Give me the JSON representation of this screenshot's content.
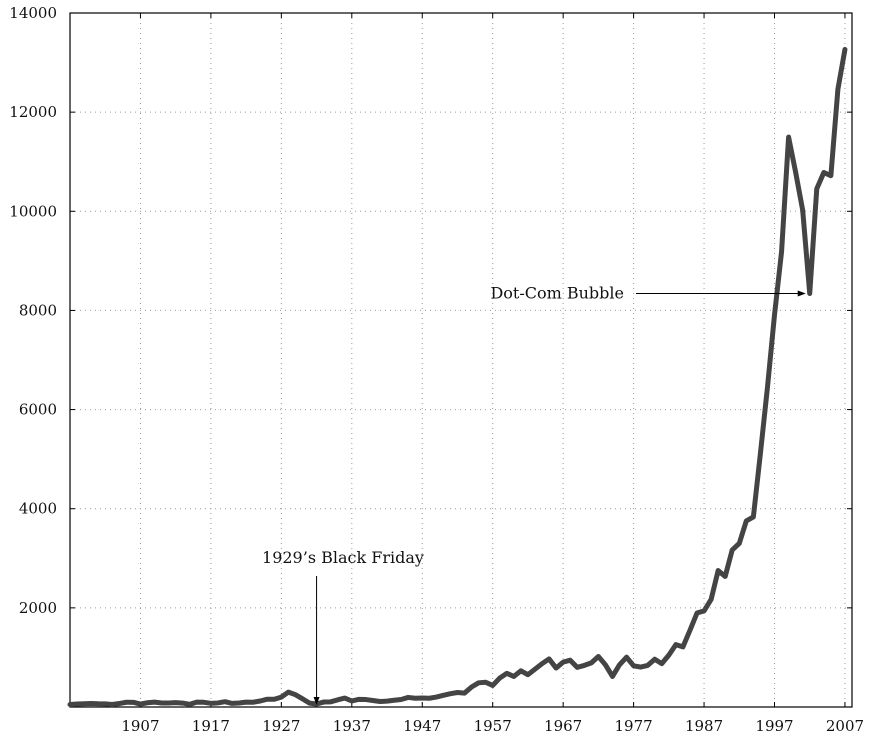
{
  "chart_data": {
    "type": "line",
    "title": "",
    "xlabel": "",
    "ylabel": "",
    "xlim": [
      1897,
      2008
    ],
    "ylim": [
      0,
      14000
    ],
    "grid": true,
    "x_ticks": [
      1907,
      1917,
      1927,
      1937,
      1947,
      1957,
      1967,
      1977,
      1987,
      1997,
      2007
    ],
    "y_ticks": [
      2000,
      4000,
      6000,
      8000,
      10000,
      12000,
      14000
    ],
    "series": [
      {
        "color": "#444444",
        "x": [
          1897,
          1898,
          1899,
          1900,
          1901,
          1902,
          1903,
          1904,
          1905,
          1906,
          1907,
          1908,
          1909,
          1910,
          1911,
          1912,
          1913,
          1914,
          1915,
          1916,
          1917,
          1918,
          1919,
          1920,
          1921,
          1922,
          1923,
          1924,
          1925,
          1926,
          1927,
          1928,
          1929,
          1930,
          1931,
          1932,
          1933,
          1934,
          1935,
          1936,
          1937,
          1938,
          1939,
          1940,
          1941,
          1942,
          1943,
          1944,
          1945,
          1946,
          1947,
          1948,
          1949,
          1950,
          1951,
          1952,
          1953,
          1954,
          1955,
          1956,
          1957,
          1958,
          1959,
          1960,
          1961,
          1962,
          1963,
          1964,
          1965,
          1966,
          1967,
          1968,
          1969,
          1970,
          1971,
          1972,
          1973,
          1974,
          1975,
          1976,
          1977,
          1978,
          1979,
          1980,
          1981,
          1982,
          1983,
          1984,
          1985,
          1986,
          1987,
          1988,
          1989,
          1990,
          1991,
          1992,
          1993,
          1994,
          1995,
          1996,
          1997,
          1998,
          1999,
          2000,
          2001,
          2002,
          2003,
          2004,
          2005,
          2006,
          2007
        ],
        "y": [
          50,
          60,
          66,
          70,
          65,
          64,
          50,
          70,
          96,
          94,
          59,
          86,
          99,
          81,
          82,
          88,
          79,
          54,
          99,
          95,
          74,
          82,
          107,
          72,
          81,
          99,
          96,
          121,
          157,
          157,
          200,
          300,
          248,
          165,
          78,
          60,
          100,
          104,
          144,
          180,
          121,
          155,
          150,
          131,
          111,
          119,
          136,
          152,
          193,
          177,
          181,
          177,
          200,
          235,
          269,
          292,
          281,
          404,
          488,
          499,
          435,
          584,
          679,
          616,
          731,
          652,
          763,
          874,
          969,
          786,
          905,
          944,
          800,
          839,
          890,
          1020,
          851,
          616,
          852,
          1005,
          831,
          805,
          839,
          964,
          875,
          1047,
          1259,
          1212,
          1547,
          1896,
          1939,
          2169,
          2753,
          2634,
          3169,
          3301,
          3754,
          3834,
          5117,
          6448,
          7908,
          9181,
          11497,
          10787,
          10022,
          8342,
          10454,
          10783,
          10718,
          12463,
          13265
        ]
      }
    ],
    "annotations": [
      {
        "text": "1929’s Black Friday",
        "x": 1932,
        "y": 0
      },
      {
        "text": "Dot-Com Bubble",
        "x": 2002,
        "y": 8342
      }
    ]
  }
}
